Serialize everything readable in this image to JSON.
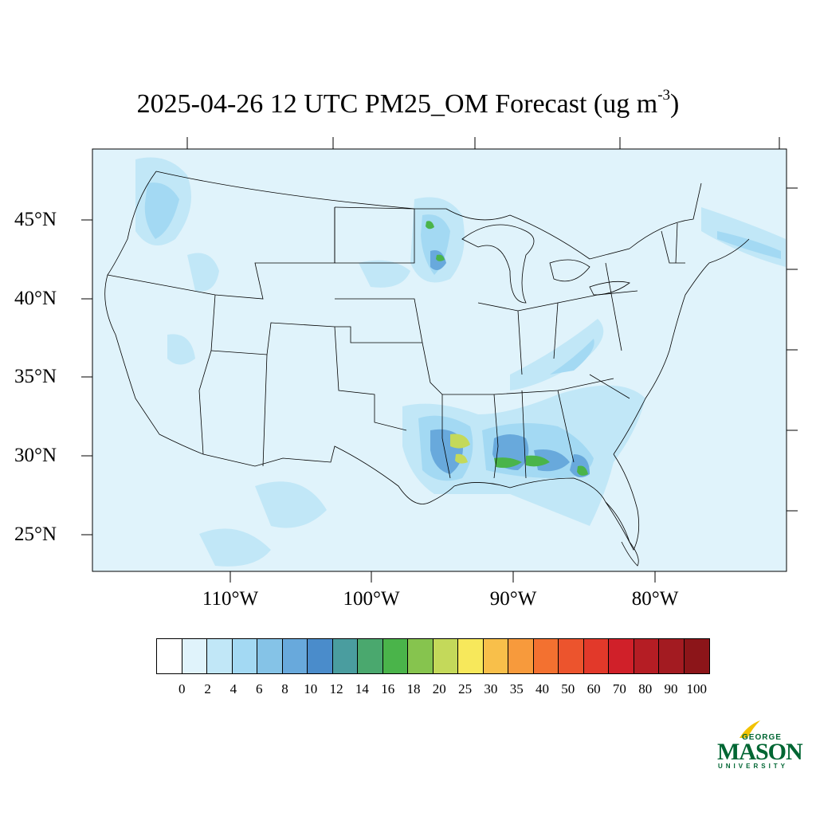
{
  "title": {
    "main": "2025-04-26 12 UTC PM25_OM Forecast (ug m",
    "superscript": "-3",
    "close": ")"
  },
  "axes": {
    "lat_labels": [
      "45°N",
      "40°N",
      "35°N",
      "30°N",
      "25°N"
    ],
    "lon_labels": [
      "110°W",
      "100°W",
      "90°W",
      "80°W"
    ]
  },
  "colorbar": {
    "labels": [
      "0",
      "2",
      "4",
      "6",
      "8",
      "10",
      "12",
      "14",
      "16",
      "18",
      "20",
      "25",
      "30",
      "35",
      "40",
      "50",
      "60",
      "70",
      "80",
      "90",
      "100"
    ],
    "colors": [
      "#ffffff",
      "#e0f3fb",
      "#c1e7f7",
      "#a3d9f3",
      "#85c3e7",
      "#68a9dc",
      "#4a8ccb",
      "#4a9d9f",
      "#4aa86e",
      "#4ab44a",
      "#86c44e",
      "#c4d95a",
      "#f7e85b",
      "#f8bf4a",
      "#f79a3c",
      "#f37130",
      "#ec542d",
      "#e2392a",
      "#d02029",
      "#b51d24",
      "#a31b21",
      "#8c1519"
    ]
  },
  "logo": {
    "line1": "GEORGE",
    "line2": "MASON",
    "line3": "UNIVERSITY"
  },
  "colors": {
    "background_field": "#e0f3fb",
    "boundary": "#000000",
    "logo_green": "#006633",
    "logo_gold": "#f2c200"
  }
}
